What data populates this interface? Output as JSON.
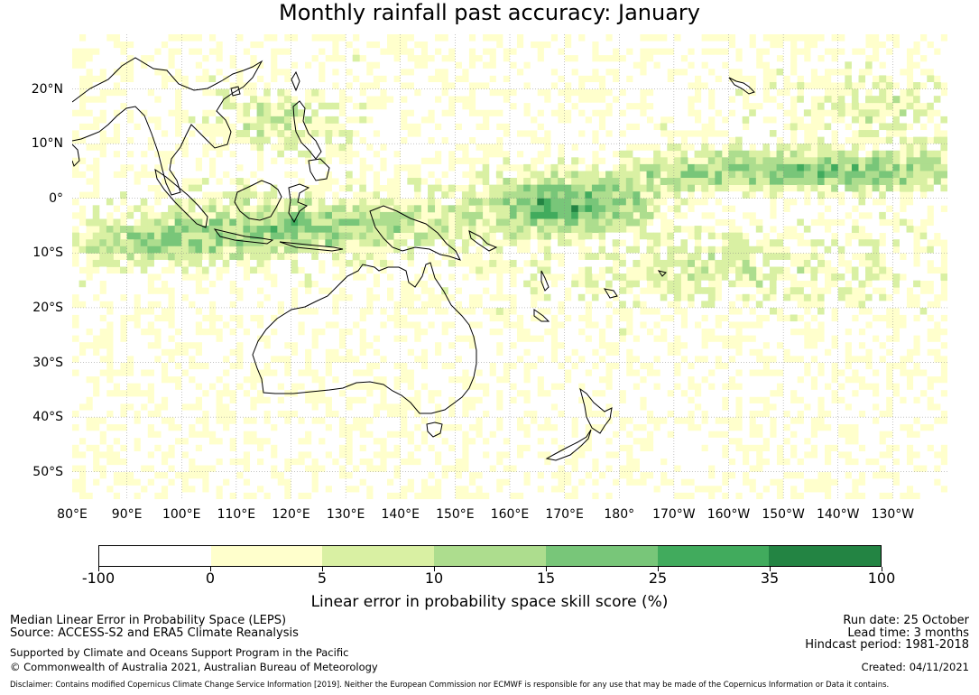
{
  "title": "Monthly rainfall past accuracy: January",
  "map": {
    "lon_range_deg_east": [
      80,
      240
    ],
    "lat_range": [
      -55,
      30
    ],
    "lat_labels": [
      "20°N",
      "10°N",
      "0°",
      "10°S",
      "20°S",
      "30°S",
      "40°S",
      "50°S"
    ],
    "lon_labels": [
      "80°E",
      "90°E",
      "100°E",
      "110°E",
      "120°E",
      "130°E",
      "140°E",
      "150°E",
      "160°E",
      "170°E",
      "180°",
      "170°W",
      "160°W",
      "150°W",
      "140°W",
      "130°W"
    ],
    "gridlines": true,
    "coastline_color": "#000000"
  },
  "colorbar": {
    "boundary_labels": [
      "-100",
      "0",
      "5",
      "10",
      "15",
      "25",
      "35",
      "100"
    ],
    "colors": [
      "#ffffff",
      "#ffffcc",
      "#d9f0a3",
      "#addd8e",
      "#78c679",
      "#41ab5d",
      "#238443"
    ],
    "label": "Linear error in probability space skill score (%)"
  },
  "footer": {
    "left_line1": "Median Linear Error in Probability Space (LEPS)",
    "left_line2": "Source: ACCESS-S2 and ERA5 Climate Reanalysis",
    "left_line3": "Supported by Climate and Oceans Support Program in the Pacific",
    "left_line4": "© Commonwealth of Australia 2021, Australian Bureau of Meteorology",
    "right_line1": "Run date: 25 October",
    "right_line2": "Lead time: 3 months",
    "right_line3": "Hindcast period: 1981-2018",
    "right_line4": "Created: 04/11/2021",
    "disclaimer": "Disclaimer: Contains modified Copernicus Climate Change Service Information [2019]. Neither the European Commission nor ECMWF is responsible for any use that may be made of the Copernicus Information or Data it contains."
  }
}
